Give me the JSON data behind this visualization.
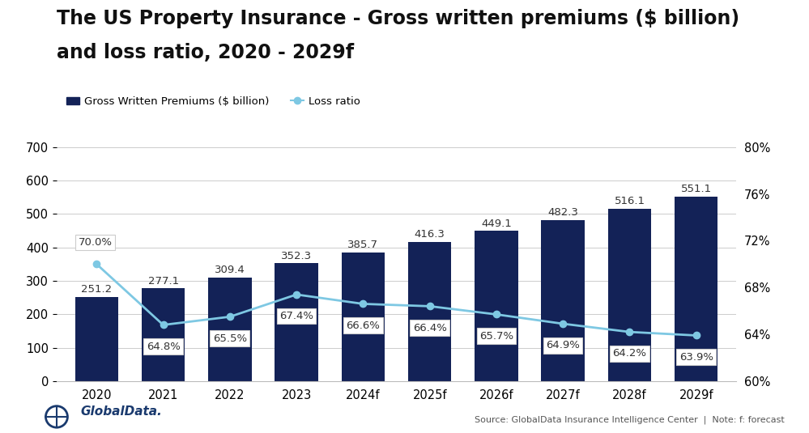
{
  "title_line1": "The US Property Insurance - Gross written premiums ($ billion)",
  "title_line2": "and loss ratio, 2020 - 2029f",
  "categories": [
    "2020",
    "2021",
    "2022",
    "2023",
    "2024f",
    "2025f",
    "2026f",
    "2027f",
    "2028f",
    "2029f"
  ],
  "gwp_values": [
    251.2,
    277.1,
    309.4,
    352.3,
    385.7,
    416.3,
    449.1,
    482.3,
    516.1,
    551.1
  ],
  "loss_ratio": [
    70.0,
    64.8,
    65.5,
    67.4,
    66.6,
    66.4,
    65.7,
    64.9,
    64.2,
    63.9
  ],
  "bar_color": "#132257",
  "line_color": "#7ec8e3",
  "marker_color": "#7ec8e3",
  "ylim_left": [
    0,
    700
  ],
  "ylim_right": [
    60,
    80
  ],
  "yticks_left": [
    0,
    100,
    200,
    300,
    400,
    500,
    600,
    700
  ],
  "yticks_right": [
    60,
    64,
    68,
    72,
    76,
    80
  ],
  "ytick_right_labels": [
    "60%",
    "64%",
    "68%",
    "72%",
    "76%",
    "80%"
  ],
  "legend_bar_label": "Gross Written Premiums ($ billion)",
  "legend_line_label": "Loss ratio",
  "source_text": "Source: GlobalData Insurance Intelligence Center  |  Note: f: forecast",
  "background_color": "#ffffff",
  "title_fontsize": 17,
  "label_fontsize": 9.5,
  "axis_fontsize": 10.5,
  "grid_color": "#cccccc",
  "annotation_box_color": "#eeeeee"
}
